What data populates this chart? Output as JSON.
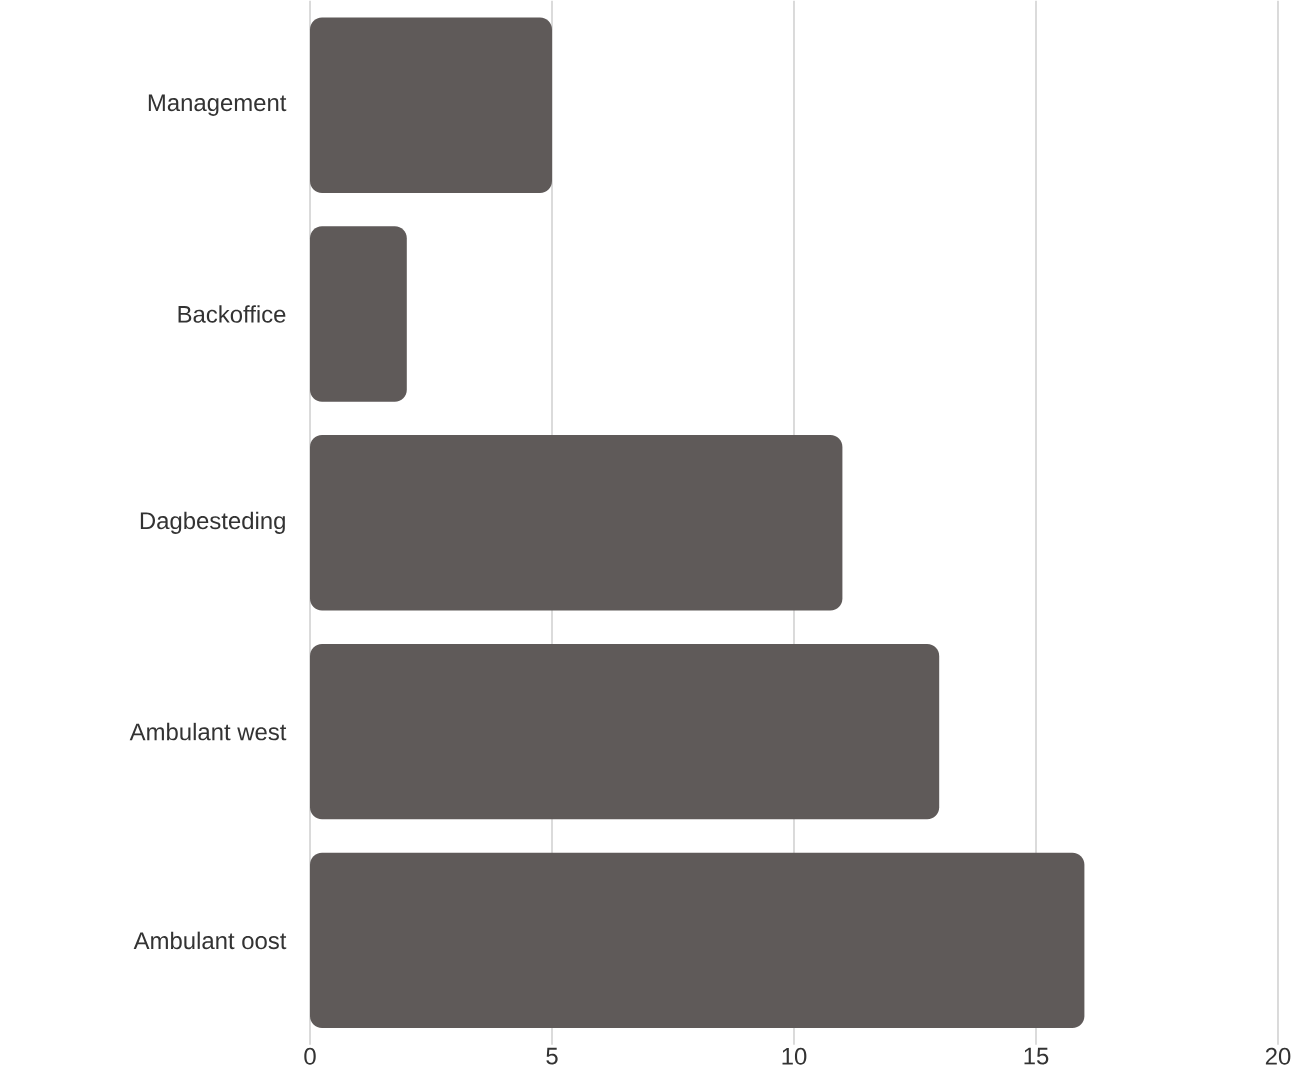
{
  "chart_data": {
    "type": "bar",
    "orientation": "horizontal",
    "categories": [
      "Management",
      "Backoffice",
      "Dagbesteding",
      "Ambulant west",
      "Ambulant oost"
    ],
    "values": [
      5,
      2,
      11,
      13,
      16
    ],
    "color": "#5f5a59",
    "xlim": [
      0,
      20
    ],
    "xticks": [
      0,
      5,
      10,
      15,
      20
    ],
    "grid": "x"
  }
}
